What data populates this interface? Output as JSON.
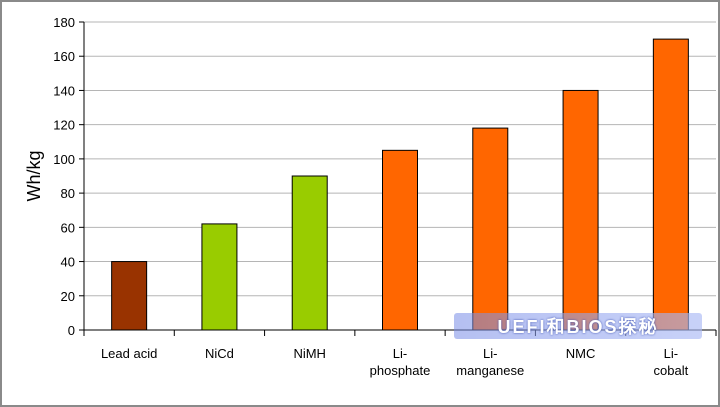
{
  "chart_data": {
    "type": "bar",
    "title": "",
    "xlabel": "",
    "ylabel": "Wh/kg",
    "ylim": [
      0,
      180
    ],
    "yticks": [
      0,
      20,
      40,
      60,
      80,
      100,
      120,
      140,
      160,
      180
    ],
    "grid": true,
    "categories": [
      [
        "Lead acid"
      ],
      [
        "NiCd"
      ],
      [
        "NiMH"
      ],
      [
        "Li-",
        "phosphate"
      ],
      [
        "Li-",
        "manganese"
      ],
      [
        "NMC"
      ],
      [
        "Li-",
        "cobalt"
      ]
    ],
    "values": [
      40,
      62,
      90,
      105,
      118,
      140,
      170
    ],
    "colors": [
      "#993300",
      "#99cc00",
      "#99cc00",
      "#ff6600",
      "#ff6600",
      "#ff6600",
      "#ff6600"
    ]
  },
  "watermark": "UEFI和BIOS探秘"
}
